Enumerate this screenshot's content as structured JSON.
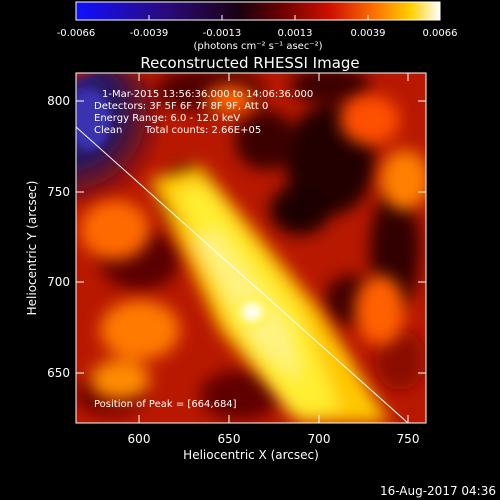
{
  "figure": {
    "title": "Reconstructed RHESSI Image",
    "colorbar": {
      "ticks": [
        "-0.0066",
        "-0.0039",
        "-0.0013",
        "0.0013",
        "0.0039",
        "0.0066"
      ],
      "unit_label": "(photons cm⁻² s⁻¹ asec⁻²)",
      "colormap": "blue-black-red-yellow-white"
    },
    "x_axis": {
      "label": "Heliocentric X (arcsec)",
      "ticks": [
        "600",
        "650",
        "700",
        "750"
      ],
      "range": [
        565,
        760
      ]
    },
    "y_axis": {
      "label": "Heliocentric Y (arcsec)",
      "ticks": [
        "800",
        "750",
        "700",
        "650"
      ],
      "range": [
        620,
        812
      ]
    },
    "annotations": {
      "time": "1-Mar-2015 13:56:36.000 to 14:06:36.000",
      "detectors": "Detectors: 3F 5F 6F 7F 8F 9F, Att 0",
      "energy": "Energy Range: 6.0 - 12.0 keV",
      "clean": "Clean",
      "counts": "Total counts: 2.66E+05",
      "peak": "Position of Peak = [664,684]"
    },
    "footer_date": "16-Aug-2017 04:36",
    "colors": {
      "background": "#000000",
      "text": "#ffffff",
      "cmap_low": "#1010ff",
      "cmap_high": "#ffffff"
    }
  }
}
